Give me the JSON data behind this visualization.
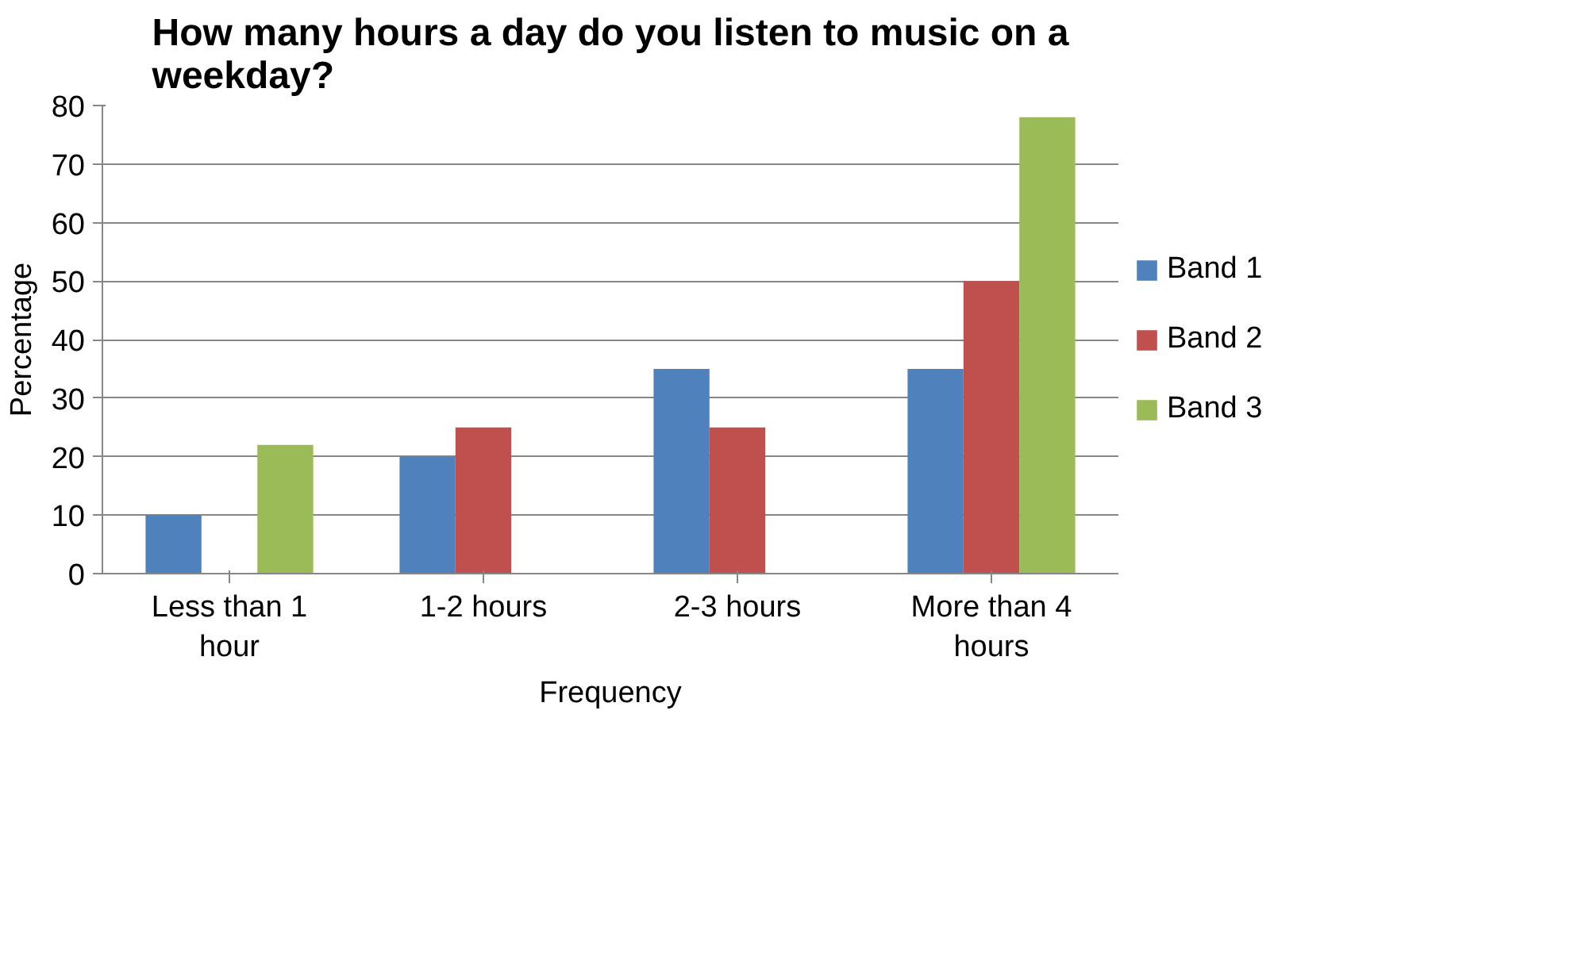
{
  "chart_data": {
    "type": "bar",
    "title": "How many hours a day do you listen to music on a weekday?",
    "xlabel": "Frequency",
    "ylabel": "Percentage",
    "categories": [
      "Less than 1 hour",
      "1-2 hours",
      "2-3 hours",
      "More than 4 hours"
    ],
    "series": [
      {
        "name": "Band 1",
        "color": "#4f81bd",
        "values": [
          10,
          20,
          35,
          35
        ]
      },
      {
        "name": "Band 2",
        "color": "#c0504d",
        "values": [
          0,
          25,
          25,
          50
        ]
      },
      {
        "name": "Band 3",
        "color": "#9bbb59",
        "values": [
          22,
          0,
          0,
          78
        ]
      }
    ],
    "ylim": [
      0,
      80
    ],
    "yticks": [
      0,
      10,
      20,
      30,
      40,
      50,
      60,
      70,
      80
    ],
    "grid": "y",
    "legend": "right"
  }
}
